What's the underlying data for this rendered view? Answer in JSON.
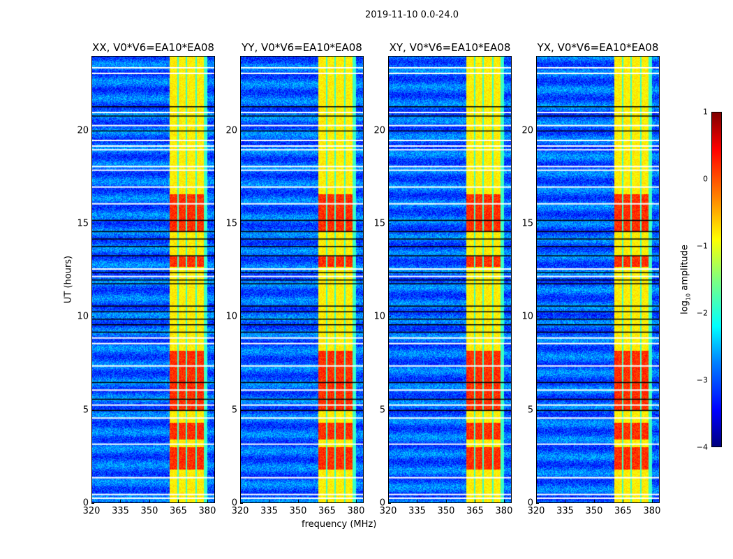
{
  "chart_data": {
    "type": "heatmap",
    "title": "2019-11-10 0.0-24.0",
    "xlabel": "frequency (MHz)",
    "ylabel": "UT (hours)",
    "xlim": [
      320,
      384
    ],
    "ylim": [
      0,
      24
    ],
    "xticks": [
      "320",
      "335",
      "350",
      "365",
      "380"
    ],
    "xtick_values": [
      320,
      335,
      350,
      365,
      380
    ],
    "yticks": [
      "0",
      "5",
      "10",
      "15",
      "20"
    ],
    "ytick_values": [
      0,
      5,
      10,
      15,
      20
    ],
    "panels": [
      {
        "title": "XX, V0*V6=EA10*EA08"
      },
      {
        "title": "YY, V0*V6=EA10*EA08"
      },
      {
        "title": "XY, V0*V6=EA10*EA08"
      },
      {
        "title": "YX, V0*V6=EA10*EA08"
      }
    ],
    "background_log_amplitude": -2.9,
    "rfi_band_mhz": [
      360.5,
      380
    ],
    "rfi_subbands_mhz": [
      [
        360.5,
        364.5
      ],
      [
        365,
        369
      ],
      [
        369.5,
        374
      ],
      [
        374.5,
        378.5
      ]
    ],
    "rfi_strong_hours": [
      [
        3.4,
        4.3
      ],
      [
        5.0,
        8.2
      ],
      [
        12.7,
        13.3
      ],
      [
        14.6,
        16.6
      ],
      [
        1.8,
        3.0
      ]
    ],
    "flagged_hours_white": [
      0.3,
      0.5,
      1.4,
      3.2,
      4.6,
      5.3,
      6.1,
      7.4,
      8.6,
      8.9,
      12.2,
      12.6,
      16.1,
      17.0,
      17.9,
      18.1,
      19.0,
      19.2,
      19.5,
      20.3,
      21.0,
      23.1,
      23.4
    ],
    "flagged_hours_black": [
      5.0,
      5.6,
      6.5,
      9.2,
      9.6,
      9.9,
      10.3,
      10.6,
      11.8,
      12.0,
      12.4,
      13.3,
      13.8,
      14.2,
      14.6,
      15.2,
      20.0,
      20.8,
      21.3
    ],
    "colorbar": {
      "label": "log10 amplitude",
      "label_main": "log",
      "label_sub": "10",
      "label_rest": " amplitude",
      "range": [
        -4,
        1
      ],
      "ticks": [
        "1",
        "0",
        "−1",
        "−2",
        "−3",
        "−4"
      ],
      "tick_values": [
        1,
        0,
        -1,
        -2,
        -3,
        -4
      ],
      "colormap": "jet"
    }
  }
}
